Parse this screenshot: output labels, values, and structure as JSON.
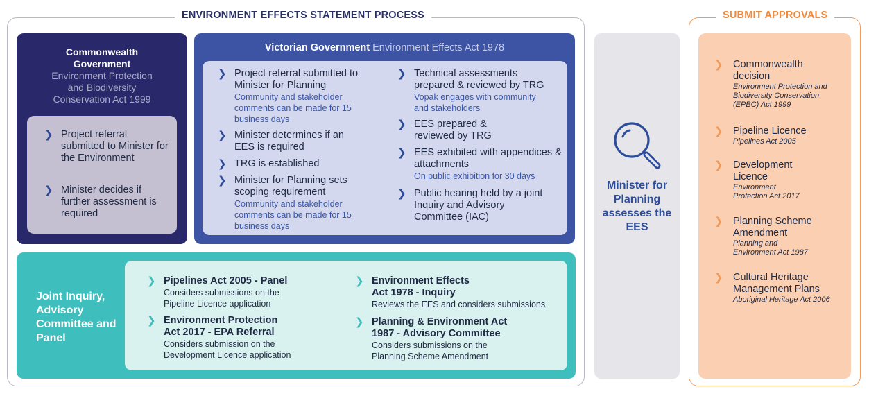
{
  "titles": {
    "ees_process": "ENVIRONMENT EFFECTS STATEMENT PROCESS",
    "submit_approvals": "SUBMIT APPROVALS"
  },
  "commonwealth": {
    "heading": "Commonwealth Government",
    "act": "Environment Protection and Biodiversity Conservation Act 1999",
    "items": [
      "Project referral submitted to Minister for the Environment",
      "Minister decides if further assessment is required"
    ]
  },
  "victorian": {
    "heading": "Victorian Government",
    "act": "Environment Effects Act 1978",
    "left_items": [
      {
        "main": "Project referral submitted to Minister for Planning",
        "sub": "Community and stakeholder comments can be made for 15 business days"
      },
      {
        "main": "Minister determines if an EES is required",
        "sub": ""
      },
      {
        "main": "TRG is established",
        "sub": ""
      },
      {
        "main": "Minister for Planning sets scoping requirement",
        "sub": "Community and stakeholder comments can be made for 15 business days"
      }
    ],
    "right_items": [
      {
        "main": "Technical assessments prepared & reviewed by TRG",
        "sub": "Vopak engages with community and stakeholders"
      },
      {
        "main": "EES prepared & reviewed by TRG",
        "sub": ""
      },
      {
        "main": "EES exhibited with appendices & attachments",
        "sub": "On public exhibition for 30 days"
      },
      {
        "main": "Public hearing held by a joint Inquiry and Advisory Committee (IAC)",
        "sub": ""
      }
    ]
  },
  "joint_inquiry": {
    "label": "Joint Inquiry, Advisory Committee and Panel",
    "items": [
      {
        "main": "Pipelines Act 2005 - Panel",
        "sub": "Considers submissions on the Pipeline Licence application"
      },
      {
        "main": "Environment Protection Act 2017 - EPA Referral",
        "sub": "Considers submission on the Development Licence application"
      },
      {
        "main": "Environment Effects Act 1978 - Inquiry",
        "sub": "Reviews the EES and considers submissions"
      },
      {
        "main": "Planning & Environment Act 1987 - Advisory Committee",
        "sub": "Considers submissions on the Planning Scheme Amendment"
      }
    ]
  },
  "minister": {
    "icon": "magnifying-glass-icon",
    "text": "Minister for Planning assesses the EES"
  },
  "approvals": {
    "items": [
      {
        "main": "Commonwealth decision",
        "sub": "Environment Protection and Biodiversity Conservation (EPBC) Act 1999"
      },
      {
        "main": "Pipeline Licence",
        "sub": "Pipelines Act 2005"
      },
      {
        "main": "Development Licence",
        "sub": "Environment Protection Act 2017"
      },
      {
        "main": "Planning Scheme Amendment",
        "sub": "Planning and Environment Act 1987"
      },
      {
        "main": "Cultural Heritage Management Plans",
        "sub": "Aboriginal Heritage Act 2006"
      }
    ]
  },
  "colors": {
    "navy": "#29286a",
    "royal_blue": "#3d53a4",
    "teal": "#3ebfbe",
    "orange": "#f29a58",
    "peach": "#fbcfb1",
    "grey": "#e6e6ea"
  }
}
